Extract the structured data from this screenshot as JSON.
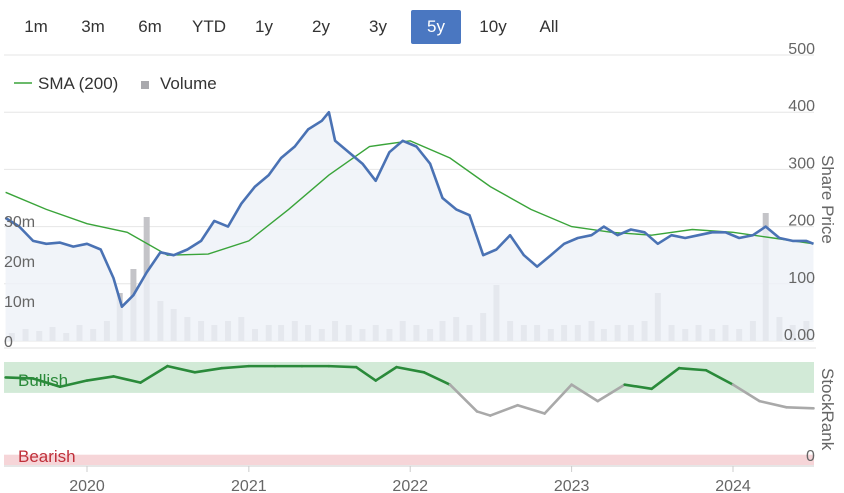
{
  "range_buttons": [
    "1m",
    "3m",
    "6m",
    "YTD",
    "1y",
    "2y",
    "3y",
    "5y",
    "10y",
    "All"
  ],
  "active_range": "5y",
  "legend": {
    "sma_label": "SMA (200)",
    "volume_label": "Volume"
  },
  "colors": {
    "price": "#4a72b4",
    "sma": "#3aa43a",
    "volume": "#c4c4c8",
    "bullish_fill": "#d2ead7",
    "bearish_fill": "#f6d5d8",
    "stockrank_bull": "#2a8a3a",
    "stockrank_neutral": "#a9a9a9",
    "active_button": "#4a77c1"
  },
  "chart_data": [
    {
      "type": "line",
      "name": "share-price-panel",
      "y_axis_label": "Share Price",
      "price_ticks": [
        "500",
        "400",
        "300",
        "200",
        "100",
        "0.00"
      ],
      "price_ylim": [
        0,
        500
      ],
      "volume_ticks": [
        "30m",
        "20m",
        "10m",
        "0"
      ],
      "volume_ylim": [
        0,
        40000000
      ],
      "x_ticks": [
        "2020",
        "2021",
        "2022",
        "2023",
        "2024"
      ],
      "grid": true,
      "legend_position": "top-left",
      "series": [
        {
          "name": "Share Price",
          "x": [
            "2019-07-01",
            "2019-08-01",
            "2019-09-01",
            "2019-10-01",
            "2019-11-01",
            "2019-12-01",
            "2020-01-01",
            "2020-02-01",
            "2020-03-01",
            "2020-03-20",
            "2020-04-15",
            "2020-05-15",
            "2020-06-15",
            "2020-07-15",
            "2020-08-15",
            "2020-09-15",
            "2020-10-15",
            "2020-11-15",
            "2020-12-15",
            "2021-01-15",
            "2021-02-15",
            "2021-03-15",
            "2021-04-15",
            "2021-05-15",
            "2021-06-15",
            "2021-07-01",
            "2021-07-15",
            "2021-08-15",
            "2021-09-15",
            "2021-10-15",
            "2021-11-15",
            "2021-12-15",
            "2022-01-15",
            "2022-02-15",
            "2022-03-15",
            "2022-04-15",
            "2022-05-15",
            "2022-06-15",
            "2022-07-15",
            "2022-08-15",
            "2022-09-15",
            "2022-10-15",
            "2022-11-15",
            "2022-12-15",
            "2023-01-15",
            "2023-02-15",
            "2023-03-15",
            "2023-04-15",
            "2023-05-15",
            "2023-06-15",
            "2023-07-15",
            "2023-08-15",
            "2023-09-15",
            "2023-10-15",
            "2023-11-15",
            "2023-12-15",
            "2024-01-15",
            "2024-02-15",
            "2024-03-15",
            "2024-04-15",
            "2024-05-15",
            "2024-06-15",
            "2024-07-01"
          ],
          "y": [
            215,
            200,
            175,
            170,
            172,
            165,
            170,
            160,
            110,
            60,
            80,
            120,
            155,
            150,
            160,
            175,
            210,
            200,
            240,
            270,
            290,
            320,
            340,
            370,
            385,
            400,
            350,
            330,
            310,
            280,
            330,
            350,
            340,
            310,
            250,
            230,
            220,
            150,
            160,
            185,
            150,
            130,
            150,
            170,
            180,
            185,
            200,
            185,
            195,
            190,
            170,
            185,
            180,
            185,
            190,
            190,
            180,
            185,
            200,
            180,
            175,
            175,
            170
          ],
          "color": "#4a72b4"
        },
        {
          "name": "SMA (200)",
          "x": [
            "2019-07-01",
            "2019-10-01",
            "2020-01-01",
            "2020-04-01",
            "2020-07-01",
            "2020-10-01",
            "2021-01-01",
            "2021-04-01",
            "2021-07-01",
            "2021-10-01",
            "2022-01-01",
            "2022-04-01",
            "2022-07-01",
            "2022-10-01",
            "2023-01-01",
            "2023-04-01",
            "2023-07-01",
            "2023-10-01",
            "2024-01-01",
            "2024-04-01",
            "2024-07-01"
          ],
          "y": [
            260,
            230,
            205,
            190,
            150,
            152,
            175,
            230,
            290,
            340,
            350,
            320,
            270,
            230,
            200,
            190,
            185,
            195,
            190,
            180,
            170
          ],
          "color": "#3aa43a"
        },
        {
          "name": "Volume",
          "x": [
            "2019-07",
            "2019-08",
            "2019-09",
            "2019-10",
            "2019-11",
            "2019-12",
            "2020-01",
            "2020-02",
            "2020-03",
            "2020-04",
            "2020-05",
            "2020-06",
            "2020-07",
            "2020-08",
            "2020-09",
            "2020-10",
            "2020-11",
            "2020-12",
            "2021-01",
            "2021-02",
            "2021-03",
            "2021-04",
            "2021-05",
            "2021-06",
            "2021-07",
            "2021-08",
            "2021-09",
            "2021-10",
            "2021-11",
            "2021-12",
            "2022-01",
            "2022-02",
            "2022-03",
            "2022-04",
            "2022-05",
            "2022-06",
            "2022-07",
            "2022-08",
            "2022-09",
            "2022-10",
            "2022-11",
            "2022-12",
            "2023-01",
            "2023-02",
            "2023-03",
            "2023-04",
            "2023-05",
            "2023-06",
            "2023-07",
            "2023-08",
            "2023-09",
            "2023-10",
            "2023-11",
            "2023-12",
            "2024-01",
            "2024-02",
            "2024-03",
            "2024-04",
            "2024-05",
            "2024-06"
          ],
          "values": [
            2000000,
            3000000,
            2500000,
            3500000,
            2000000,
            4000000,
            3000000,
            5000000,
            12000000,
            18000000,
            31000000,
            10000000,
            8000000,
            6000000,
            5000000,
            4000000,
            5000000,
            6000000,
            3000000,
            4000000,
            4000000,
            5000000,
            4000000,
            3000000,
            5000000,
            4000000,
            3000000,
            4000000,
            3000000,
            5000000,
            4000000,
            3000000,
            5000000,
            6000000,
            4000000,
            7000000,
            14000000,
            5000000,
            4000000,
            4000000,
            3000000,
            4000000,
            4000000,
            5000000,
            3000000,
            4000000,
            4000000,
            5000000,
            12000000,
            4000000,
            3000000,
            4000000,
            3000000,
            4000000,
            3000000,
            5000000,
            32000000,
            6000000,
            4000000,
            5000000
          ],
          "color": "#c4c4c8"
        }
      ]
    },
    {
      "type": "line",
      "name": "stockrank-panel",
      "y_axis_label": "StockRank",
      "zone_labels": {
        "bullish": "Bullish",
        "bearish": "Bearish"
      },
      "ylim": [
        0,
        100
      ],
      "y_ticks": [
        "0"
      ],
      "bullish_zone": [
        70,
        100
      ],
      "bearish_zone": [
        0,
        10
      ],
      "series": [
        {
          "name": "StockRank",
          "x": [
            "2019-07-01",
            "2019-09-01",
            "2019-11-01",
            "2020-01-01",
            "2020-03-01",
            "2020-05-01",
            "2020-07-01",
            "2020-09-01",
            "2020-11-01",
            "2021-01-01",
            "2021-03-01",
            "2021-05-01",
            "2021-07-01",
            "2021-09-01",
            "2021-10-15",
            "2021-12-01",
            "2022-02-01",
            "2022-04-01",
            "2022-06-01",
            "2022-07-01",
            "2022-09-01",
            "2022-11-01",
            "2023-01-01",
            "2023-03-01",
            "2023-05-01",
            "2023-07-01",
            "2023-09-01",
            "2023-11-01",
            "2024-01-01",
            "2024-03-01",
            "2024-05-01",
            "2024-07-01"
          ],
          "y": [
            85,
            84,
            76,
            82,
            86,
            80,
            96,
            90,
            94,
            96,
            96,
            96,
            96,
            95,
            82,
            95,
            90,
            78,
            52,
            48,
            58,
            50,
            78,
            62,
            78,
            74,
            94,
            92,
            78,
            62,
            56,
            55
          ],
          "bullish_threshold": 70
        }
      ]
    }
  ]
}
